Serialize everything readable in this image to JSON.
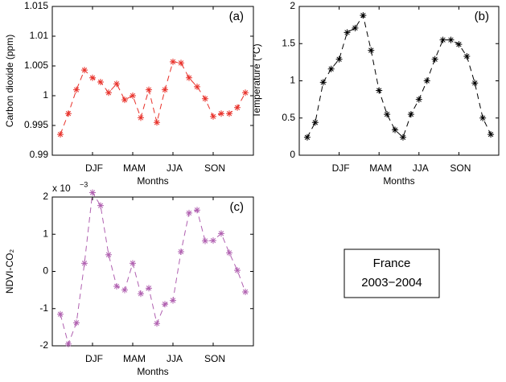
{
  "chart_data": [
    {
      "type": "line",
      "title": "(a)",
      "xlabel": "Months",
      "ylabel": "Carbon dioxide (ppm)",
      "x": [
        1,
        2,
        3,
        4,
        5,
        6,
        7,
        8,
        9,
        10,
        11,
        12,
        13,
        14,
        15,
        16,
        17,
        18,
        19,
        20,
        21,
        22,
        23,
        24
      ],
      "series": [
        {
          "color": "#e8312a",
          "values": [
            0.9935,
            0.997,
            1.001,
            1.0043,
            1.003,
            1.0023,
            1.0005,
            1.002,
            0.9993,
            1.0,
            0.9963,
            1.001,
            0.9955,
            1.001,
            1.0057,
            1.0055,
            1.003,
            1.0015,
            0.9995,
            0.9965,
            0.997,
            0.997,
            0.998,
            1.0005
          ]
        }
      ],
      "xlim": [
        0,
        25
      ],
      "xticks": [
        {
          "value": 5,
          "label": "DJF"
        },
        {
          "value": 10,
          "label": "MAM"
        },
        {
          "value": 15,
          "label": "JJA"
        },
        {
          "value": 20,
          "label": "SON"
        }
      ],
      "ylim": [
        0.99,
        1.015
      ],
      "yticks": [
        0.99,
        0.995,
        1,
        1.005,
        1.01,
        1.015
      ]
    },
    {
      "type": "line",
      "title": "(b)",
      "xlabel": "Months",
      "ylabel": "Temperature (°C)",
      "x": [
        1,
        2,
        3,
        4,
        5,
        6,
        7,
        8,
        9,
        10,
        11,
        12,
        13,
        14,
        15,
        16,
        17,
        18,
        19,
        20,
        21,
        22,
        23,
        24
      ],
      "series": [
        {
          "color": "#000000",
          "values": [
            0.24,
            0.44,
            0.98,
            1.16,
            1.29,
            1.65,
            1.71,
            1.88,
            1.41,
            0.87,
            0.55,
            0.34,
            0.24,
            0.55,
            0.75,
            1.0,
            1.29,
            1.55,
            1.55,
            1.49,
            1.33,
            0.97,
            0.5,
            0.28
          ]
        }
      ],
      "xlim": [
        0,
        25
      ],
      "xticks": [
        {
          "value": 5,
          "label": "DJF"
        },
        {
          "value": 10,
          "label": "MAM"
        },
        {
          "value": 15,
          "label": "JJA"
        },
        {
          "value": 20,
          "label": "SON"
        }
      ],
      "ylim": [
        0,
        2
      ],
      "yticks": [
        0,
        0.5,
        1,
        1.5,
        2
      ]
    },
    {
      "type": "line",
      "title": "(c)",
      "xlabel": "Months",
      "ylabel": "NDVI-CO₂",
      "y_multiplier": {
        "base": "x 10",
        "exponent": "−3"
      },
      "x": [
        1,
        2,
        3,
        4,
        5,
        6,
        7,
        8,
        9,
        10,
        11,
        12,
        13,
        14,
        15,
        16,
        17,
        18,
        19,
        20,
        21,
        22,
        23,
        24
      ],
      "series": [
        {
          "color": "#b060b0",
          "values": [
            -1.15,
            -1.95,
            -1.38,
            0.22,
            2.12,
            1.77,
            0.45,
            -0.4,
            -0.5,
            0.22,
            -0.6,
            -0.45,
            -1.4,
            -0.88,
            -0.78,
            0.53,
            1.57,
            1.65,
            0.82,
            0.83,
            1.02,
            0.5,
            0.03,
            -0.55
          ]
        }
      ],
      "xlim": [
        0,
        25
      ],
      "xticks": [
        {
          "value": 5,
          "label": "DJF"
        },
        {
          "value": 10,
          "label": "MAM"
        },
        {
          "value": 15,
          "label": "JJA"
        },
        {
          "value": 20,
          "label": "SON"
        }
      ],
      "ylim": [
        -2,
        2
      ],
      "yticks": [
        -2,
        -1,
        0,
        1,
        2
      ]
    }
  ],
  "annotation_box": [
    "France",
    "2003−2004"
  ]
}
